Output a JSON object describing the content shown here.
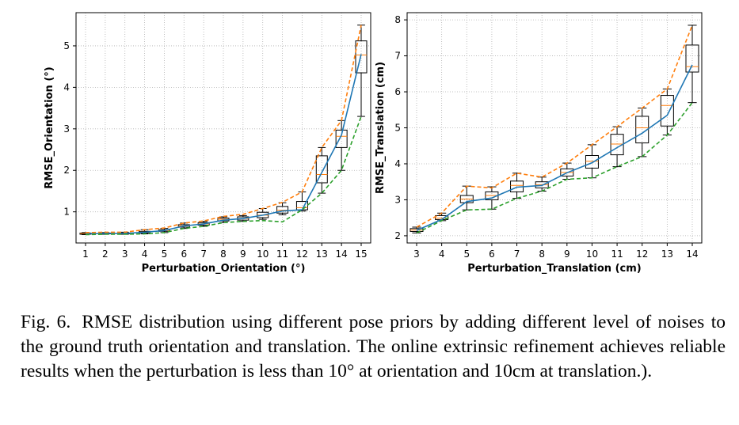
{
  "chart_data": [
    {
      "type": "box",
      "xlabel": "Perturbation_Orientation (°)",
      "ylabel": "RMSE_Orientation (°)",
      "categories": [
        "1",
        "2",
        "3",
        "4",
        "5",
        "6",
        "7",
        "8",
        "9",
        "10",
        "11",
        "12",
        "13",
        "14",
        "15"
      ],
      "yticks": [
        1,
        2,
        3,
        4,
        5
      ],
      "ylim": [
        0.25,
        5.8
      ],
      "grid": true,
      "boxes": [
        {
          "whislo": 0.45,
          "q1": 0.46,
          "med": 0.48,
          "q3": 0.49,
          "whishi": 0.5
        },
        {
          "whislo": 0.46,
          "q1": 0.47,
          "med": 0.48,
          "q3": 0.49,
          "whishi": 0.5
        },
        {
          "whislo": 0.46,
          "q1": 0.47,
          "med": 0.48,
          "q3": 0.49,
          "whishi": 0.51
        },
        {
          "whislo": 0.47,
          "q1": 0.49,
          "med": 0.51,
          "q3": 0.53,
          "whishi": 0.57
        },
        {
          "whislo": 0.5,
          "q1": 0.53,
          "med": 0.55,
          "q3": 0.57,
          "whishi": 0.6
        },
        {
          "whislo": 0.6,
          "q1": 0.63,
          "med": 0.66,
          "q3": 0.69,
          "whishi": 0.73
        },
        {
          "whislo": 0.65,
          "q1": 0.68,
          "med": 0.71,
          "q3": 0.74,
          "whishi": 0.77
        },
        {
          "whislo": 0.74,
          "q1": 0.78,
          "med": 0.82,
          "q3": 0.85,
          "whishi": 0.88
        },
        {
          "whislo": 0.77,
          "q1": 0.8,
          "med": 0.84,
          "q3": 0.88,
          "whishi": 0.91
        },
        {
          "whislo": 0.82,
          "q1": 0.86,
          "med": 0.92,
          "q3": 0.99,
          "whishi": 1.08
        },
        {
          "whislo": 0.93,
          "q1": 0.97,
          "med": 1.04,
          "q3": 1.13,
          "whishi": 1.22
        },
        {
          "whislo": 1.02,
          "q1": 1.05,
          "med": 1.1,
          "q3": 1.25,
          "whishi": 1.48
        },
        {
          "whislo": 1.45,
          "q1": 1.7,
          "med": 1.9,
          "q3": 2.35,
          "whishi": 2.55
        },
        {
          "whislo": 2.0,
          "q1": 2.55,
          "med": 2.82,
          "q3": 2.97,
          "whishi": 3.2
        },
        {
          "whislo": 3.3,
          "q1": 4.35,
          "med": 4.78,
          "q3": 5.12,
          "whishi": 5.5
        }
      ],
      "series": [
        {
          "color": "#1f77b4",
          "style": "solid",
          "values": [
            0.47,
            0.48,
            0.48,
            0.51,
            0.55,
            0.66,
            0.71,
            0.8,
            0.84,
            0.92,
            1.02,
            1.05,
            1.95,
            2.85,
            4.8
          ]
        },
        {
          "color": "#ff7f0e",
          "style": "dashed",
          "values": [
            0.5,
            0.51,
            0.51,
            0.57,
            0.61,
            0.73,
            0.78,
            0.89,
            0.94,
            1.08,
            1.23,
            1.48,
            2.55,
            3.2,
            5.5
          ]
        },
        {
          "color": "#2ca02c",
          "style": "dashed",
          "values": [
            0.45,
            0.46,
            0.46,
            0.47,
            0.5,
            0.6,
            0.65,
            0.74,
            0.77,
            0.79,
            0.76,
            1.05,
            1.45,
            2.0,
            3.3
          ]
        }
      ]
    },
    {
      "type": "box",
      "xlabel": "Perturbation_Translation (cm)",
      "ylabel": "RMSE_Translation (cm)",
      "categories": [
        "3",
        "4",
        "5",
        "6",
        "7",
        "8",
        "9",
        "10",
        "11",
        "12",
        "13",
        "14"
      ],
      "yticks": [
        2,
        3,
        4,
        5,
        6,
        7,
        8
      ],
      "ylim": [
        1.8,
        8.2
      ],
      "grid": true,
      "boxes": [
        {
          "whislo": 2.08,
          "q1": 2.12,
          "med": 2.16,
          "q3": 2.2,
          "whishi": 2.24
        },
        {
          "whislo": 2.42,
          "q1": 2.45,
          "med": 2.49,
          "q3": 2.56,
          "whishi": 2.63
        },
        {
          "whislo": 2.72,
          "q1": 2.92,
          "med": 3.02,
          "q3": 3.12,
          "whishi": 3.38
        },
        {
          "whislo": 2.74,
          "q1": 3.0,
          "med": 3.12,
          "q3": 3.22,
          "whishi": 3.36
        },
        {
          "whislo": 3.04,
          "q1": 3.22,
          "med": 3.4,
          "q3": 3.52,
          "whishi": 3.74
        },
        {
          "whislo": 3.24,
          "q1": 3.33,
          "med": 3.42,
          "q3": 3.5,
          "whishi": 3.63
        },
        {
          "whislo": 3.57,
          "q1": 3.66,
          "med": 3.76,
          "q3": 3.86,
          "whishi": 4.02
        },
        {
          "whislo": 3.61,
          "q1": 3.88,
          "med": 4.07,
          "q3": 4.23,
          "whishi": 4.53
        },
        {
          "whislo": 3.92,
          "q1": 4.25,
          "med": 4.55,
          "q3": 4.82,
          "whishi": 5.03
        },
        {
          "whislo": 4.2,
          "q1": 4.58,
          "med": 5.0,
          "q3": 5.32,
          "whishi": 5.55
        },
        {
          "whislo": 4.8,
          "q1": 5.05,
          "med": 5.62,
          "q3": 5.9,
          "whishi": 6.08
        },
        {
          "whislo": 5.7,
          "q1": 6.55,
          "med": 6.7,
          "q3": 7.3,
          "whishi": 7.85
        }
      ],
      "series": [
        {
          "color": "#1f77b4",
          "style": "solid",
          "values": [
            2.15,
            2.45,
            2.95,
            3.05,
            3.35,
            3.4,
            3.75,
            4.03,
            4.45,
            4.85,
            5.35,
            6.75
          ]
        },
        {
          "color": "#ff7f0e",
          "style": "dashed",
          "values": [
            2.24,
            2.63,
            3.38,
            3.33,
            3.74,
            3.63,
            4.02,
            4.53,
            5.03,
            5.55,
            6.08,
            7.85
          ]
        },
        {
          "color": "#2ca02c",
          "style": "dashed",
          "values": [
            2.08,
            2.42,
            2.72,
            2.74,
            3.04,
            3.24,
            3.57,
            3.61,
            3.92,
            4.2,
            4.8,
            5.7
          ]
        }
      ]
    }
  ],
  "caption": {
    "label": "Fig. 6.",
    "text": "RMSE distribution using different pose priors by adding different level of noises to the ground truth orientation and translation. The online extrinsic refinement achieves reliable results when the perturbation is less than 10° at orientation and 10cm at translation.)."
  }
}
